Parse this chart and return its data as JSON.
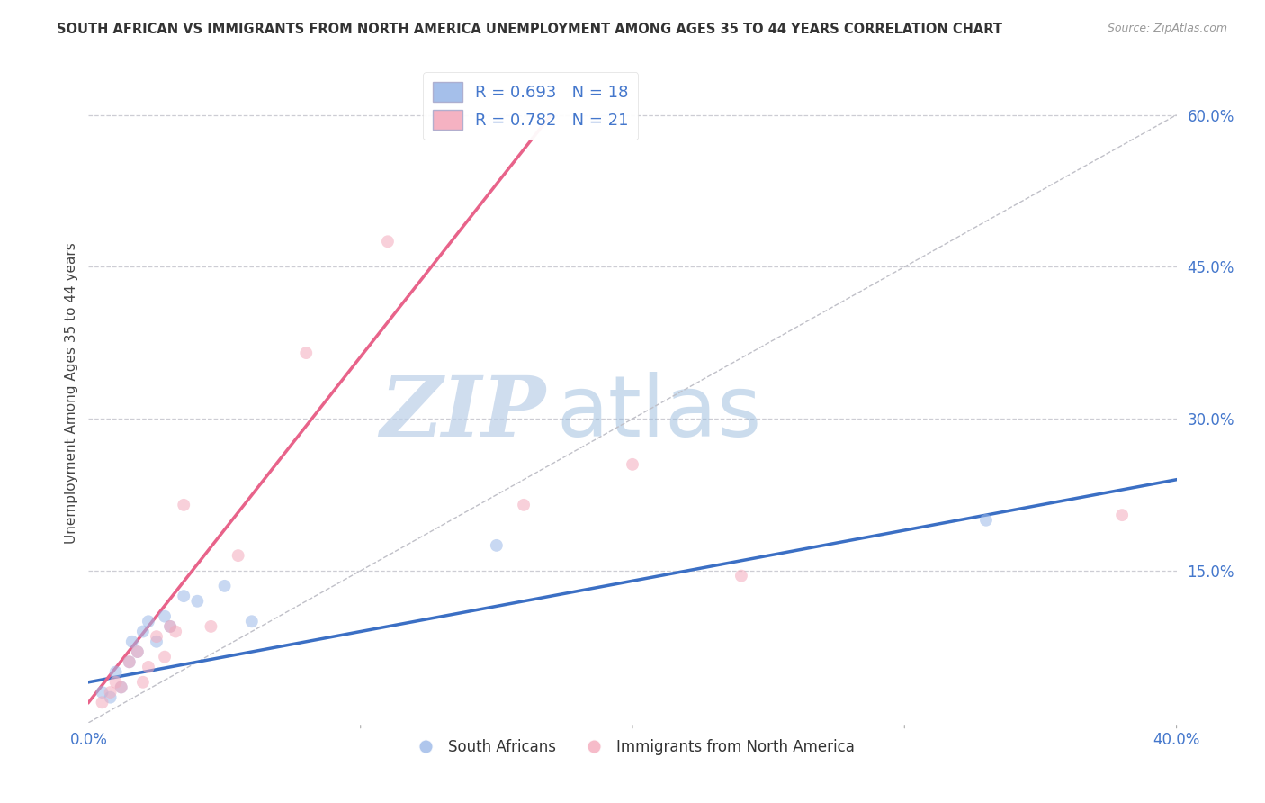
{
  "title": "SOUTH AFRICAN VS IMMIGRANTS FROM NORTH AMERICA UNEMPLOYMENT AMONG AGES 35 TO 44 YEARS CORRELATION CHART",
  "source": "Source: ZipAtlas.com",
  "ylabel": "Unemployment Among Ages 35 to 44 years",
  "x_min": 0.0,
  "x_max": 0.4,
  "y_min": 0.0,
  "y_max": 0.65,
  "x_ticks": [
    0.0,
    0.1,
    0.2,
    0.3,
    0.4
  ],
  "x_tick_labels": [
    "0.0%",
    "",
    "",
    "",
    "40.0%"
  ],
  "y_ticks": [
    0.15,
    0.3,
    0.45,
    0.6
  ],
  "y_tick_labels": [
    "15.0%",
    "30.0%",
    "45.0%",
    "60.0%"
  ],
  "blue_color": "#9BB8E8",
  "pink_color": "#F4AABC",
  "blue_line_color": "#3B6FC4",
  "pink_line_color": "#E8638A",
  "grid_color": "#C8C8D0",
  "legend_r_blue": "0.693",
  "legend_n_blue": "18",
  "legend_r_pink": "0.782",
  "legend_n_pink": "21",
  "south_africans_label": "South Africans",
  "immigrants_label": "Immigrants from North America",
  "blue_scatter_x": [
    0.005,
    0.008,
    0.01,
    0.012,
    0.015,
    0.016,
    0.018,
    0.02,
    0.022,
    0.025,
    0.028,
    0.03,
    0.035,
    0.04,
    0.05,
    0.06,
    0.15,
    0.33
  ],
  "blue_scatter_y": [
    0.03,
    0.025,
    0.05,
    0.035,
    0.06,
    0.08,
    0.07,
    0.09,
    0.1,
    0.08,
    0.105,
    0.095,
    0.125,
    0.12,
    0.135,
    0.1,
    0.175,
    0.2
  ],
  "pink_scatter_x": [
    0.005,
    0.008,
    0.01,
    0.012,
    0.015,
    0.018,
    0.02,
    0.022,
    0.025,
    0.028,
    0.03,
    0.032,
    0.035,
    0.045,
    0.055,
    0.08,
    0.11,
    0.16,
    0.2,
    0.24,
    0.38
  ],
  "pink_scatter_y": [
    0.02,
    0.03,
    0.04,
    0.035,
    0.06,
    0.07,
    0.04,
    0.055,
    0.085,
    0.065,
    0.095,
    0.09,
    0.215,
    0.095,
    0.165,
    0.365,
    0.475,
    0.215,
    0.255,
    0.145,
    0.205
  ],
  "watermark_zip": "ZIP",
  "watermark_atlas": "atlas",
  "watermark_color_zip": "#BBCFE8",
  "watermark_color_atlas": "#99BBDD",
  "dashed_line_x": [
    0.0,
    0.4
  ],
  "dashed_line_y": [
    0.0,
    0.6
  ],
  "marker_size": 100,
  "marker_alpha": 0.55,
  "blue_line_x": [
    0.0,
    0.4
  ],
  "blue_line_y": [
    0.04,
    0.24
  ],
  "pink_line_x": [
    0.0,
    0.17
  ],
  "pink_line_y": [
    0.02,
    0.6
  ]
}
